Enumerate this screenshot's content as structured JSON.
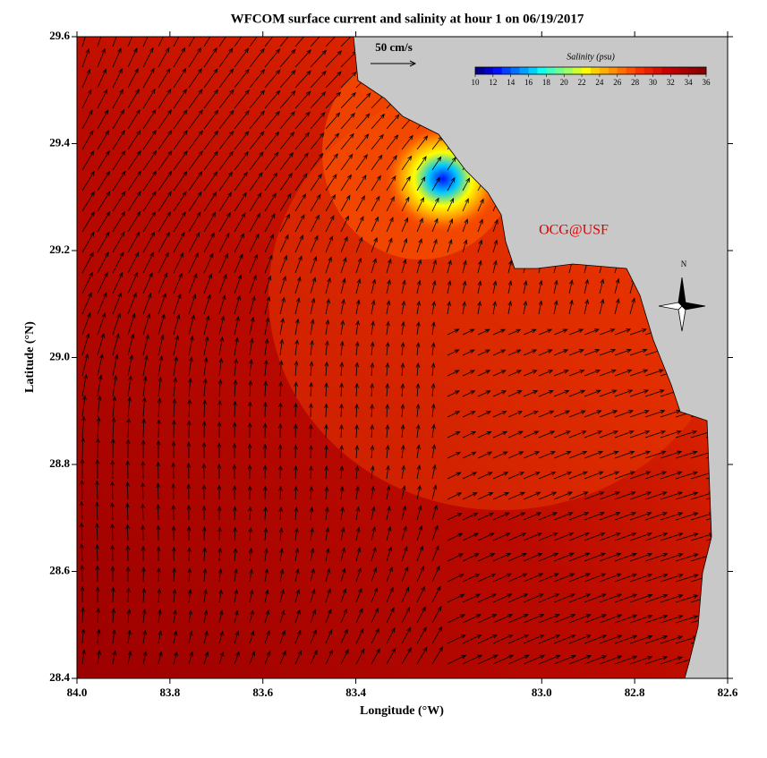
{
  "chart_data": {
    "type": "map",
    "title": "WFCOM surface current and salinity at hour 1 on 06/19/2017",
    "xlabel": "Longitude (°W)",
    "ylabel": "Latitude (°N)",
    "xlim": [
      84,
      82.6
    ],
    "ylim": [
      28.4,
      29.6
    ],
    "xticks": [
      {
        "value": 84,
        "label": "84.0"
      },
      83.8,
      83.6,
      83.4,
      {
        "value": 83,
        "label": "83.0"
      },
      82.8,
      82.6
    ],
    "yticks": [
      28.4,
      28.6,
      28.8,
      {
        "value": 29,
        "label": "29.0"
      },
      29.2,
      29.4,
      29.6
    ],
    "colorbar": {
      "title": "Salinity (psu)",
      "lim": [
        10,
        36
      ],
      "ticks": [
        10,
        12,
        14,
        16,
        18,
        20,
        22,
        24,
        26,
        28,
        30,
        32,
        34,
        36
      ],
      "colors": [
        "#00008f",
        "#0000c8",
        "#0010ff",
        "#0040ff",
        "#0070ff",
        "#00a0ff",
        "#00d0ff",
        "#10ffef",
        "#40ffbf",
        "#70ff8f",
        "#a0ff60",
        "#d0ff30",
        "#ffff00",
        "#ffd000",
        "#ffb000",
        "#ff9000",
        "#ff7000",
        "#ff5000",
        "#f83000",
        "#e82000",
        "#d81000",
        "#c80000",
        "#b80000",
        "#a80000",
        "#980000",
        "#880000"
      ]
    },
    "scale_label": "50 cm/s",
    "annotation": "OCG@USF",
    "compass_label": "N"
  }
}
